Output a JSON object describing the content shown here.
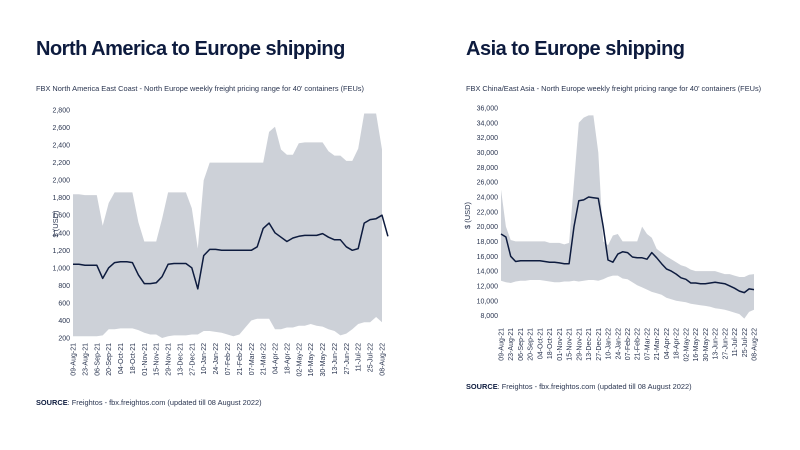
{
  "charts": [
    {
      "title": "North America to Europe shipping",
      "subtitle": "FBX North America East Coast - North Europe weekly freight pricing range for 40' containers (FEUs)",
      "source_label": "SOURCE",
      "source_text": ": Freightos - fbx.freightos.com (updated till 08 August 2022)"
    },
    {
      "title": "Asia to Europe shipping",
      "subtitle": "FBX China/East Asia - North Europe weekly freight pricing range for 40' containers (FEUs)",
      "source_label": "SOURCE",
      "source_text": ": Freightos - fbx.freightos.com (updated till 08 August 2022)"
    }
  ],
  "chart_data": [
    {
      "type": "area",
      "title": "North America to Europe shipping",
      "subtitle": "FBX North America East Coast - North Europe weekly freight pricing range for 40' containers (FEUs)",
      "xlabel": "",
      "ylabel": "$ (USD)",
      "ylim": [
        200,
        2800
      ],
      "yticks": [
        200,
        400,
        600,
        800,
        1000,
        1200,
        1400,
        1600,
        1800,
        2000,
        2200,
        2400,
        2600,
        2800
      ],
      "ytick_labels": [
        "200",
        "400",
        "600",
        "800",
        "1,000",
        "1,200",
        "1,400",
        "1,600",
        "1,800",
        "2,000",
        "2,200",
        "2,400",
        "2,600",
        "2,800"
      ],
      "x_tick_labels": [
        "09-Aug-21",
        "23-Aug-21",
        "06-Sep-21",
        "20-Sep-21",
        "04-Oct-21",
        "18-Oct-21",
        "01-Nov-21",
        "15-Nov-21",
        "29-Nov-21",
        "13-Dec-21",
        "27-Dec-21",
        "10-Jan-22",
        "24-Jan-22",
        "07-Feb-22",
        "21-Feb-22",
        "07-Mar-22",
        "21-Mar-22",
        "04-Apr-22",
        "18-Apr-22",
        "02-May-22",
        "16-May-22",
        "30-May-22",
        "13-Jun-22",
        "27-Jun-22",
        "11-Jul-22",
        "25-Jul-22",
        "08-Aug-22"
      ],
      "x_range": [
        0,
        52
      ],
      "grid": false,
      "band_color": "#cdd1d8",
      "line_color": "#0d1b3e",
      "range_upper": [
        1840,
        1840,
        1830,
        1830,
        1830,
        1480,
        1740,
        1860,
        1860,
        1860,
        1860,
        1520,
        1300,
        1300,
        1300,
        1560,
        1860,
        1860,
        1860,
        1860,
        1680,
        1220,
        2000,
        2200,
        2200,
        2200,
        2200,
        2200,
        2200,
        2200,
        2200,
        2200,
        2200,
        2550,
        2610,
        2350,
        2290,
        2290,
        2420,
        2430,
        2430,
        2430,
        2430,
        2330,
        2280,
        2280,
        2220,
        2220,
        2360,
        2760,
        2760,
        2760,
        2350
      ],
      "range_lower": [
        220,
        220,
        220,
        220,
        220,
        230,
        300,
        300,
        310,
        310,
        310,
        290,
        260,
        240,
        240,
        200,
        220,
        230,
        230,
        230,
        240,
        240,
        280,
        280,
        270,
        260,
        240,
        220,
        240,
        320,
        400,
        420,
        420,
        420,
        300,
        300,
        320,
        320,
        340,
        340,
        360,
        340,
        330,
        300,
        280,
        230,
        250,
        300,
        360,
        380,
        380,
        440,
        380
      ],
      "average": [
        1040,
        1040,
        1030,
        1030,
        1030,
        880,
        1000,
        1060,
        1070,
        1070,
        1060,
        920,
        820,
        820,
        830,
        900,
        1040,
        1050,
        1050,
        1050,
        1000,
        760,
        1140,
        1210,
        1210,
        1200,
        1200,
        1200,
        1200,
        1200,
        1200,
        1240,
        1450,
        1510,
        1400,
        1350,
        1300,
        1340,
        1360,
        1370,
        1370,
        1370,
        1390,
        1350,
        1320,
        1320,
        1240,
        1200,
        1220,
        1510,
        1550,
        1560,
        1600,
        1360
      ]
    },
    {
      "type": "area",
      "title": "Asia to Europe shipping",
      "subtitle": "FBX China/East Asia - North Europe weekly freight pricing range for 40' containers (FEUs)",
      "xlabel": "",
      "ylabel": "$ (USD)",
      "ylim": [
        7000,
        36000
      ],
      "yticks": [
        8000,
        10000,
        12000,
        14000,
        16000,
        18000,
        20000,
        22000,
        24000,
        26000,
        28000,
        30000,
        32000,
        34000,
        36000
      ],
      "ytick_labels": [
        "8,000",
        "10,000",
        "12,000",
        "14,000",
        "16,000",
        "18,000",
        "20,000",
        "22,000",
        "24,000",
        "26,000",
        "28,000",
        "30,000",
        "32,000",
        "34,000",
        "36,000"
      ],
      "x_tick_labels": [
        "09-Aug-21",
        "23-Aug-21",
        "06-Sep-21",
        "20-Sep-21",
        "04-Oct-21",
        "18-Oct-21",
        "01-Nov-21",
        "15-Nov-21",
        "29-Nov-21",
        "13-Dec-21",
        "27-Dec-21",
        "10-Jan-22",
        "24-Jan-22",
        "07-Feb-22",
        "21-Feb-22",
        "07-Mar-22",
        "21-Mar-22",
        "04-Apr-22",
        "18-Apr-22",
        "02-May-22",
        "16-May-22",
        "30-May-22",
        "13-Jun-22",
        "27-Jun-22",
        "11-Jul-22",
        "25-Jul-22",
        "08-Aug-22"
      ],
      "x_range": [
        0,
        52
      ],
      "grid": false,
      "band_color": "#cdd1d8",
      "line_color": "#0d1b3e",
      "range_upper": [
        25000,
        20000,
        18200,
        18000,
        18000,
        18000,
        18000,
        18000,
        18000,
        18000,
        17800,
        17800,
        17800,
        17600,
        17800,
        26000,
        34000,
        34700,
        35000,
        35000,
        30000,
        18000,
        17500,
        18800,
        19000,
        18000,
        18000,
        18000,
        18000,
        20000,
        19000,
        18500,
        17000,
        16500,
        16000,
        15600,
        15200,
        14800,
        14600,
        14200,
        14000,
        14000,
        14000,
        14000,
        14000,
        13800,
        13600,
        13600,
        13400,
        13200,
        13200,
        13500,
        13600
      ],
      "range_lower": [
        12700,
        12500,
        12400,
        12600,
        12700,
        12700,
        12800,
        12800,
        12800,
        12700,
        12600,
        12500,
        12500,
        12600,
        12600,
        12700,
        12600,
        12700,
        12800,
        12800,
        12700,
        12900,
        13200,
        13400,
        13400,
        13000,
        12900,
        12500,
        12100,
        11800,
        11500,
        11200,
        11000,
        10800,
        10400,
        10200,
        10000,
        9900,
        9800,
        9600,
        9500,
        9400,
        9300,
        9200,
        9000,
        8900,
        8800,
        8600,
        8400,
        8200,
        7600,
        8500,
        8800
      ],
      "average": [
        19000,
        18600,
        16000,
        15300,
        15400,
        15400,
        15400,
        15400,
        15400,
        15300,
        15200,
        15200,
        15100,
        15000,
        15000,
        20000,
        23500,
        23600,
        24000,
        23900,
        23800,
        20000,
        15500,
        15200,
        16300,
        16600,
        16500,
        15900,
        15800,
        15800,
        15600,
        16500,
        15800,
        15000,
        14300,
        14000,
        13600,
        13100,
        12900,
        12400,
        12400,
        12300,
        12300,
        12400,
        12500,
        12400,
        12300,
        12000,
        11700,
        11300,
        11100,
        11600,
        11500
      ]
    }
  ]
}
